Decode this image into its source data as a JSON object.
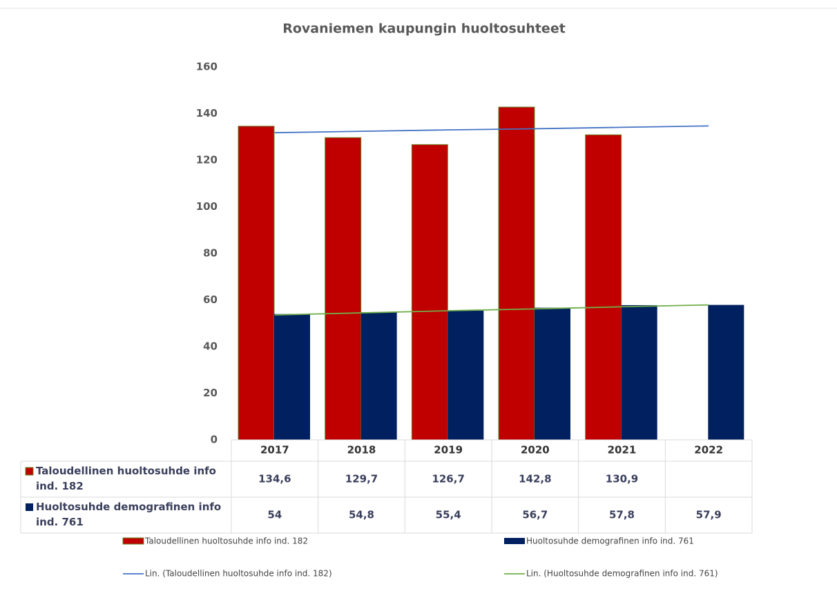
{
  "chart_data": {
    "type": "bar",
    "title": "Rovaniemen kaupungin huoltosuhteet",
    "categories": [
      "2017",
      "2018",
      "2019",
      "2020",
      "2021",
      "2022"
    ],
    "series": [
      {
        "name": "Taloudellinen huoltosuhde info ind. 182",
        "color": "#c00000",
        "edge": "#6a8a2a",
        "values": [
          134.6,
          129.7,
          126.7,
          142.8,
          130.9,
          null
        ],
        "value_labels": [
          "134,6",
          "129,7",
          "126,7",
          "142,8",
          "130,9",
          null
        ]
      },
      {
        "name": "Huoltosuhde demografinen info ind. 761",
        "color": "#002060",
        "values": [
          54,
          54.8,
          55.4,
          56.7,
          57.8,
          57.9
        ],
        "value_labels": [
          "54",
          "54,8",
          "55,4",
          "56,7",
          "57,8",
          "57,9"
        ]
      }
    ],
    "trendlines": [
      {
        "name": "Lin. (Taloudellinen huoltosuhde info ind. 182)",
        "color": "#4472c4",
        "values": [
          131.8,
          132.4,
          133.0,
          133.5,
          134.1,
          134.7
        ]
      },
      {
        "name": "Lin. (Huoltosuhde demografinen info ind. 761)",
        "color": "#70ad47",
        "values": [
          53.6,
          54.5,
          55.4,
          56.2,
          57.1,
          57.9
        ]
      }
    ],
    "ylim": [
      0,
      160
    ],
    "yticks": [
      0,
      20,
      40,
      60,
      80,
      100,
      120,
      140,
      160
    ],
    "grid": false,
    "legend": "bottom",
    "data_table": true
  }
}
